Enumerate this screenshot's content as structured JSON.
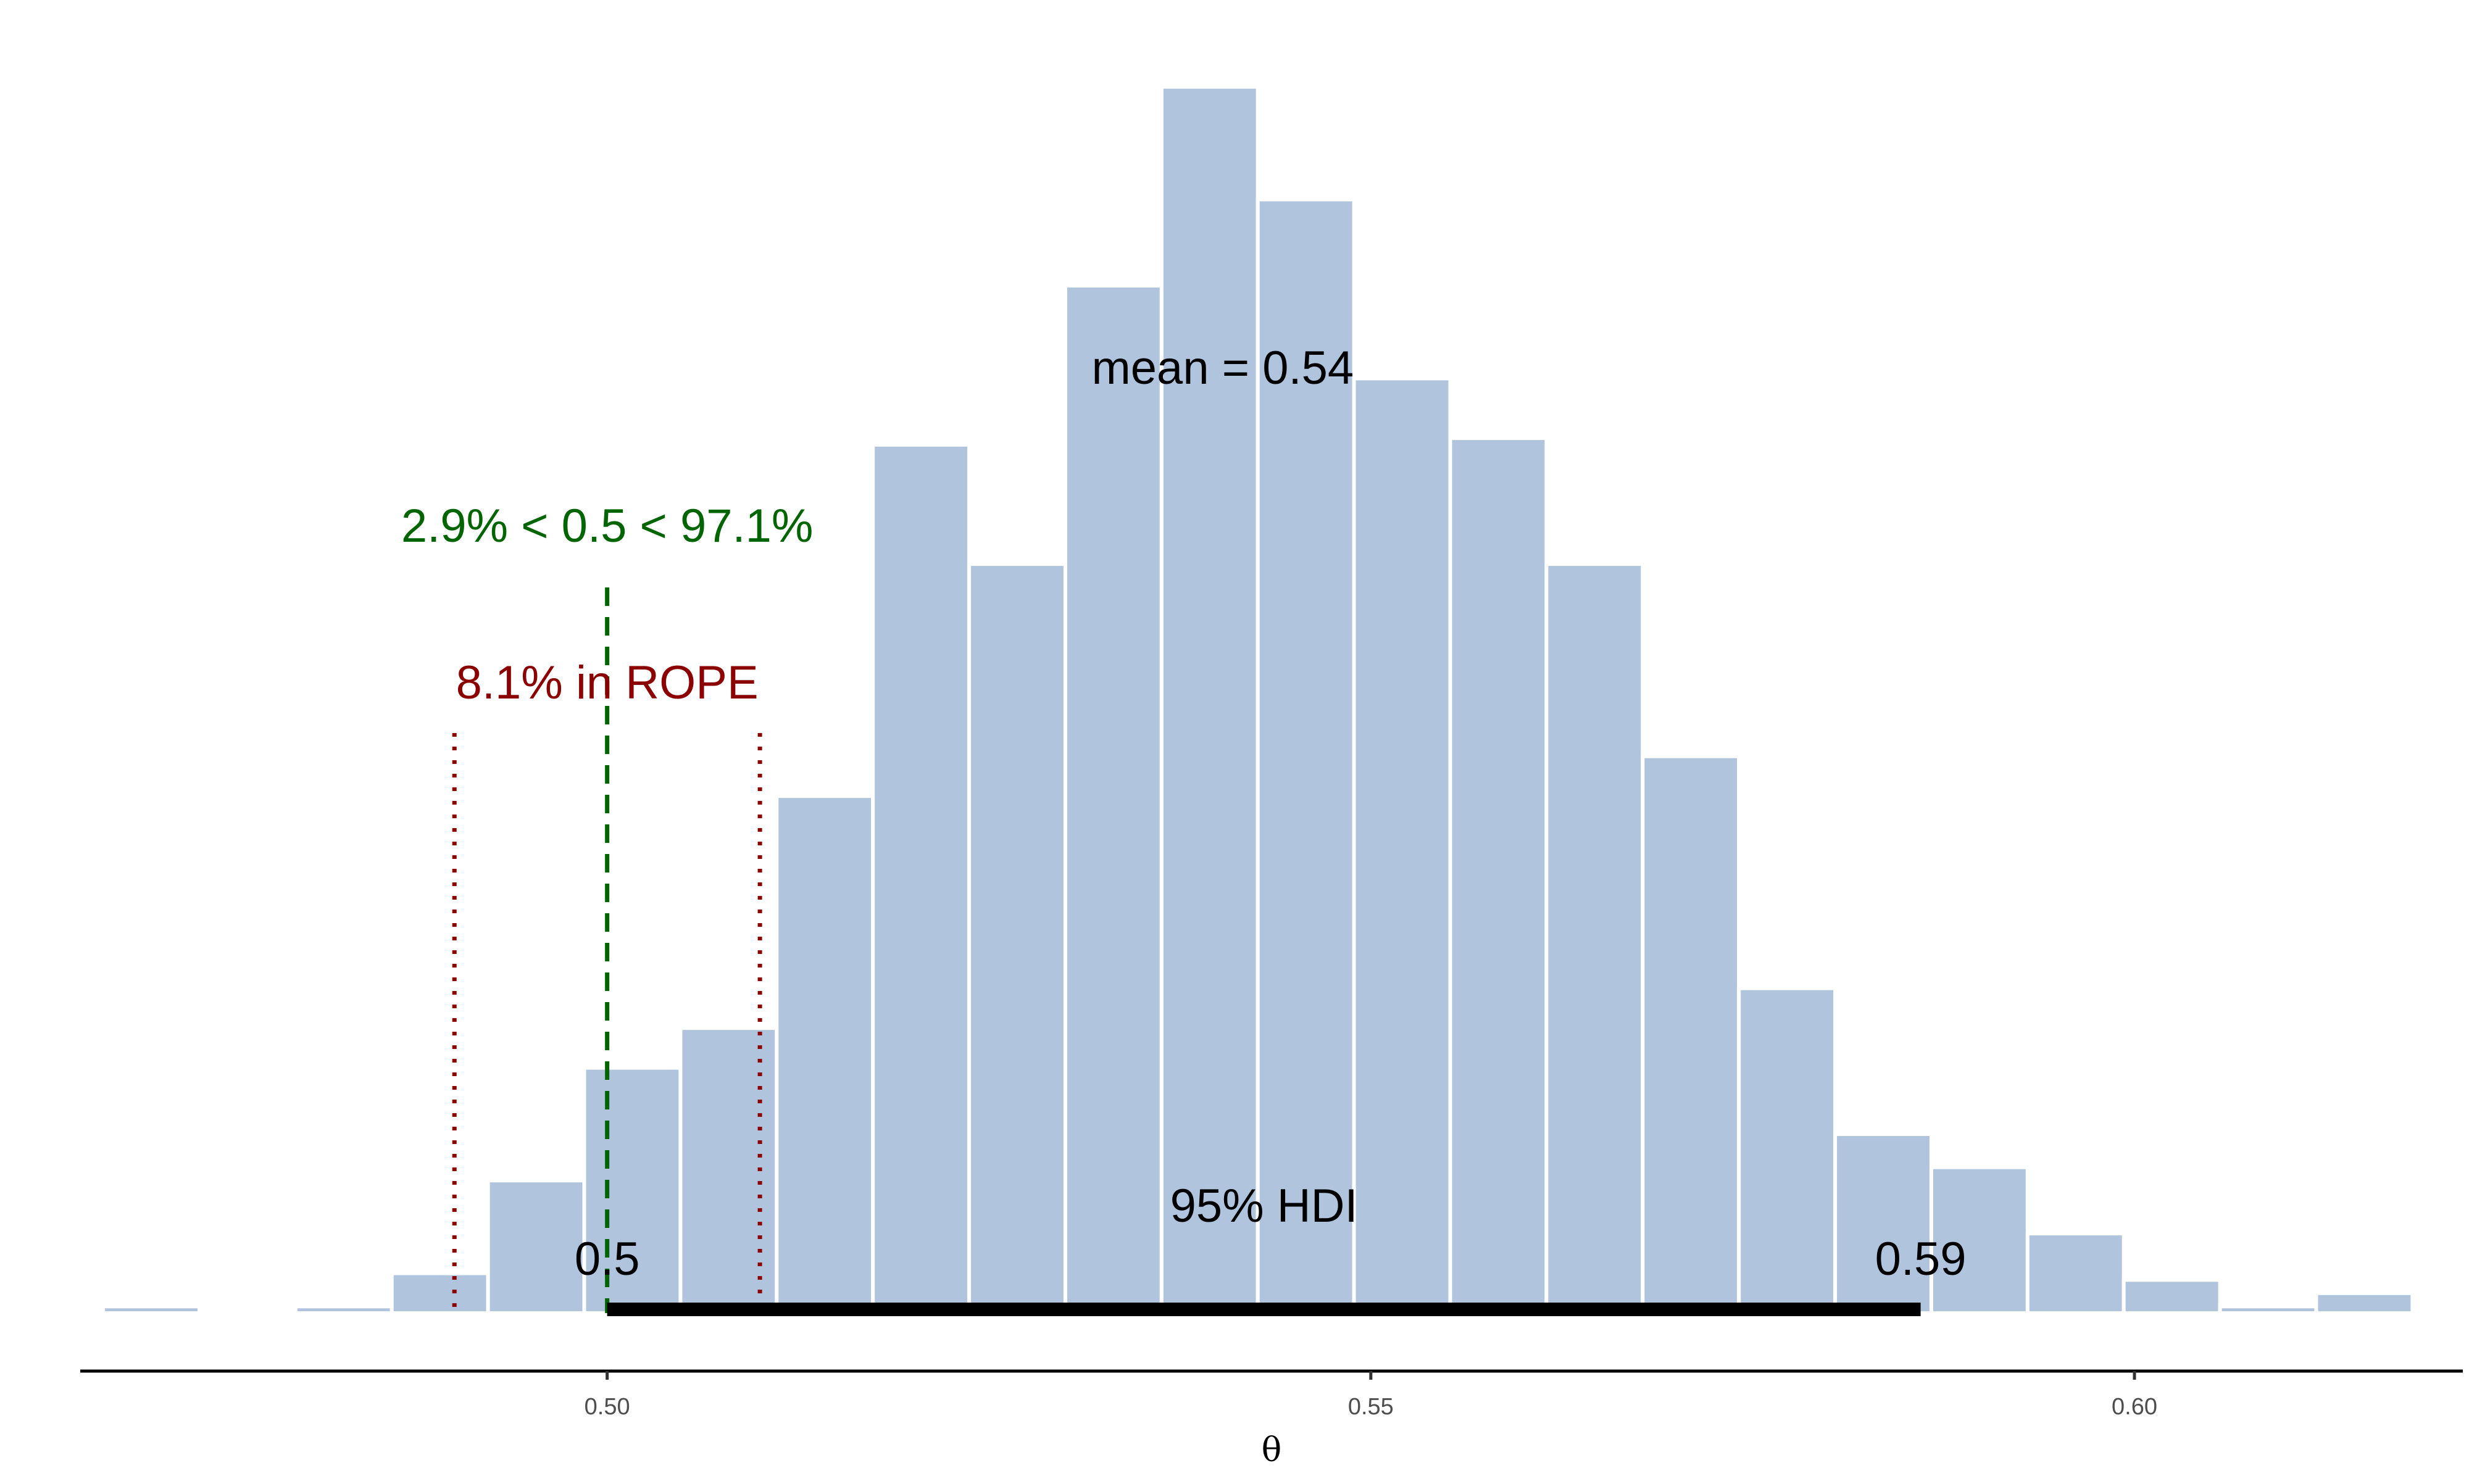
{
  "chart_data": {
    "type": "bar",
    "subtype": "histogram",
    "xlabel": "θ",
    "ylabel": "",
    "xlim": [
      0.4655,
      0.6215
    ],
    "ylim": [
      0,
      186
    ],
    "grid": false,
    "bar_color": "#b0c4de",
    "bin_width": 0.0063,
    "bins": [
      {
        "x0": 0.467,
        "x1": 0.4733,
        "count": 1
      },
      {
        "x0": 0.4796,
        "x1": 0.4859,
        "count": 1
      },
      {
        "x0": 0.4859,
        "x1": 0.4922,
        "count": 6
      },
      {
        "x0": 0.4922,
        "x1": 0.4985,
        "count": 20
      },
      {
        "x0": 0.4985,
        "x1": 0.5048,
        "count": 37
      },
      {
        "x0": 0.5048,
        "x1": 0.5111,
        "count": 43
      },
      {
        "x0": 0.5111,
        "x1": 0.5174,
        "count": 78
      },
      {
        "x0": 0.5174,
        "x1": 0.5237,
        "count": 131
      },
      {
        "x0": 0.5237,
        "x1": 0.53,
        "count": 113
      },
      {
        "x0": 0.53,
        "x1": 0.5363,
        "count": 155
      },
      {
        "x0": 0.5363,
        "x1": 0.5426,
        "count": 185
      },
      {
        "x0": 0.5426,
        "x1": 0.5489,
        "count": 168
      },
      {
        "x0": 0.5489,
        "x1": 0.5552,
        "count": 141
      },
      {
        "x0": 0.5552,
        "x1": 0.5615,
        "count": 132
      },
      {
        "x0": 0.5615,
        "x1": 0.5678,
        "count": 113
      },
      {
        "x0": 0.5678,
        "x1": 0.5741,
        "count": 84
      },
      {
        "x0": 0.5741,
        "x1": 0.5804,
        "count": 49
      },
      {
        "x0": 0.5804,
        "x1": 0.5867,
        "count": 27
      },
      {
        "x0": 0.5867,
        "x1": 0.593,
        "count": 22
      },
      {
        "x0": 0.593,
        "x1": 0.5993,
        "count": 12
      },
      {
        "x0": 0.5993,
        "x1": 0.6056,
        "count": 5
      },
      {
        "x0": 0.6056,
        "x1": 0.6119,
        "count": 1
      },
      {
        "x0": 0.6119,
        "x1": 0.6182,
        "count": 3
      }
    ],
    "x_ticks": [
      0.5,
      0.55,
      0.6
    ],
    "x_tick_labels": [
      "0.50",
      "0.55",
      "0.60"
    ],
    "mean_label": "mean = 0.54",
    "comp_value": 0.5,
    "comp_label": "2.9% < 0.5 < 97.1%",
    "comp_color": "#006400",
    "rope": [
      0.49,
      0.51
    ],
    "rope_label": "8.1% in ROPE",
    "rope_color": "#8b0000",
    "hdi": [
      0.5,
      0.586
    ],
    "hdi_label": "95% HDI",
    "hdi_low_label": "0.5",
    "hdi_high_label": "0.59"
  }
}
